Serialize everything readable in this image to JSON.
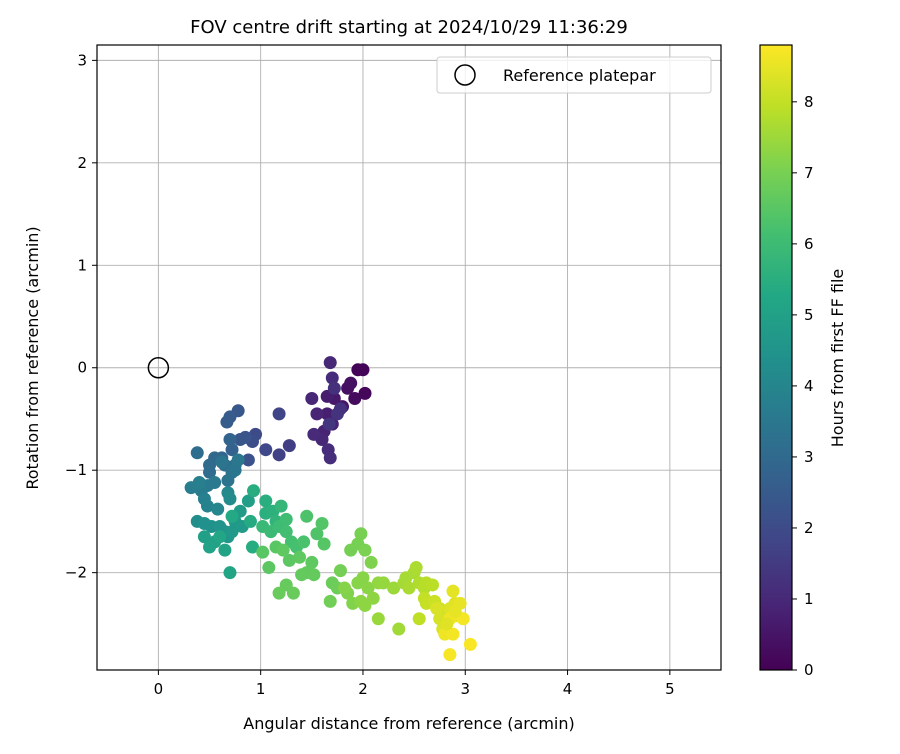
{
  "chart_data": {
    "type": "scatter",
    "title": "FOV centre drift starting at 2024/10/29 11:36:29",
    "xlabel": "Angular distance from reference (arcmin)",
    "ylabel": "Rotation from reference (arcmin)",
    "xlim": [
      -0.6,
      5.5
    ],
    "ylim": [
      -2.95,
      3.15
    ],
    "xticks": [
      "0",
      "1",
      "2",
      "3",
      "4",
      "5"
    ],
    "yticks": [
      "−2",
      "−1",
      "0",
      "1",
      "2",
      "3"
    ],
    "grid": true,
    "legend": {
      "placement": "top-right",
      "entries": [
        "Reference platepar"
      ]
    },
    "reference_point": {
      "x": 0,
      "y": 0
    },
    "colorbar": {
      "label": "Hours from first FF file",
      "range": [
        0,
        8.8
      ],
      "ticks": [
        "0",
        "1",
        "2",
        "3",
        "4",
        "5",
        "6",
        "7",
        "8"
      ],
      "colormap": "viridis",
      "colors": [
        "#440154",
        "#482475",
        "#414487",
        "#355f8d",
        "#2a788e",
        "#21918c",
        "#22a884",
        "#44bf70",
        "#7ad151",
        "#bddf26",
        "#fde725"
      ]
    },
    "series": [
      {
        "points": [
          [
            1.95,
            -0.02,
            0.05
          ],
          [
            2.0,
            -0.02,
            0.1
          ],
          [
            2.02,
            -0.25,
            0.15
          ],
          [
            1.92,
            -0.3,
            0.25
          ],
          [
            1.85,
            -0.2,
            0.35
          ],
          [
            1.88,
            -0.15,
            0.4
          ],
          [
            1.8,
            -0.38,
            0.5
          ],
          [
            1.72,
            -0.3,
            0.6
          ],
          [
            1.65,
            -0.28,
            0.7
          ],
          [
            1.65,
            -0.45,
            0.75
          ],
          [
            1.7,
            -0.55,
            0.8
          ],
          [
            1.62,
            -0.62,
            0.85
          ],
          [
            1.55,
            -0.45,
            0.9
          ],
          [
            1.5,
            -0.3,
            0.95
          ],
          [
            1.6,
            -0.7,
            1.0
          ],
          [
            1.52,
            -0.65,
            1.05
          ],
          [
            1.66,
            -0.8,
            1.1
          ],
          [
            1.68,
            -0.88,
            1.15
          ],
          [
            1.68,
            0.05,
            1.0
          ],
          [
            1.7,
            -0.1,
            1.1
          ],
          [
            1.72,
            -0.2,
            1.2
          ],
          [
            1.78,
            -0.4,
            1.25
          ],
          [
            1.75,
            -0.45,
            1.3
          ],
          [
            1.67,
            -0.55,
            1.35
          ],
          [
            1.28,
            -0.76,
            1.6
          ],
          [
            1.18,
            -0.85,
            1.7
          ],
          [
            1.18,
            -0.45,
            1.8
          ],
          [
            1.05,
            -0.8,
            1.9
          ],
          [
            0.95,
            -0.65,
            2.0
          ],
          [
            0.92,
            -0.72,
            2.1
          ],
          [
            0.88,
            -0.9,
            2.2
          ],
          [
            0.85,
            -0.68,
            2.3
          ],
          [
            0.8,
            -0.7,
            2.35
          ],
          [
            0.78,
            -0.42,
            2.4
          ],
          [
            0.7,
            -0.48,
            2.5
          ],
          [
            0.67,
            -0.53,
            2.55
          ],
          [
            0.72,
            -0.8,
            2.7
          ],
          [
            0.7,
            -0.7,
            2.8
          ],
          [
            0.62,
            -0.88,
            2.9
          ],
          [
            0.55,
            -0.88,
            3.0
          ],
          [
            0.5,
            -0.95,
            3.05
          ],
          [
            0.5,
            -1.02,
            3.1
          ],
          [
            0.38,
            -0.83,
            3.15
          ],
          [
            0.65,
            -0.95,
            3.2
          ],
          [
            0.75,
            -0.95,
            3.25
          ],
          [
            0.72,
            -1.02,
            3.3
          ],
          [
            0.68,
            -1.1,
            3.35
          ],
          [
            0.75,
            -1.0,
            3.4
          ],
          [
            0.62,
            -0.92,
            3.45
          ],
          [
            0.78,
            -0.9,
            3.5
          ],
          [
            0.55,
            -1.12,
            3.55
          ],
          [
            0.48,
            -1.15,
            3.6
          ],
          [
            0.42,
            -1.2,
            3.65
          ],
          [
            0.32,
            -1.17,
            3.7
          ],
          [
            0.4,
            -1.12,
            3.75
          ],
          [
            0.45,
            -1.28,
            3.8
          ],
          [
            0.48,
            -1.35,
            3.9
          ],
          [
            0.58,
            -1.38,
            4.0
          ],
          [
            0.68,
            -1.22,
            4.1
          ],
          [
            0.7,
            -1.28,
            4.2
          ],
          [
            0.38,
            -1.5,
            4.3
          ],
          [
            0.45,
            -1.52,
            4.35
          ],
          [
            0.52,
            -1.55,
            4.4
          ],
          [
            0.6,
            -1.55,
            4.5
          ],
          [
            0.65,
            -1.6,
            4.55
          ],
          [
            0.68,
            -1.65,
            4.6
          ],
          [
            0.72,
            -1.6,
            4.65
          ],
          [
            0.75,
            -1.5,
            4.7
          ],
          [
            0.82,
            -1.55,
            4.75
          ],
          [
            0.8,
            -1.4,
            4.8
          ],
          [
            0.88,
            -1.3,
            4.9
          ],
          [
            0.45,
            -1.65,
            4.95
          ],
          [
            0.55,
            -1.7,
            5.0
          ],
          [
            0.5,
            -1.75,
            5.05
          ],
          [
            0.65,
            -1.78,
            5.1
          ],
          [
            0.7,
            -2.0,
            5.15
          ],
          [
            0.6,
            -1.65,
            5.2
          ],
          [
            0.72,
            -1.45,
            5.3
          ],
          [
            0.9,
            -1.5,
            5.35
          ],
          [
            0.92,
            -1.75,
            5.4
          ],
          [
            0.93,
            -1.2,
            5.45
          ],
          [
            1.05,
            -1.3,
            5.5
          ],
          [
            1.05,
            -1.42,
            5.55
          ],
          [
            1.12,
            -1.4,
            5.6
          ],
          [
            1.15,
            -1.5,
            5.7
          ],
          [
            1.2,
            -1.35,
            5.8
          ],
          [
            1.02,
            -1.55,
            5.9
          ],
          [
            1.1,
            -1.6,
            5.95
          ],
          [
            1.18,
            -1.55,
            6.0
          ],
          [
            1.25,
            -1.48,
            6.05
          ],
          [
            1.25,
            -1.6,
            6.1
          ],
          [
            1.3,
            -1.7,
            6.15
          ],
          [
            1.35,
            -1.75,
            6.2
          ],
          [
            1.42,
            -1.7,
            6.25
          ],
          [
            1.45,
            -1.45,
            6.3
          ],
          [
            1.55,
            -1.62,
            6.35
          ],
          [
            1.6,
            -1.52,
            6.4
          ],
          [
            1.62,
            -1.72,
            6.45
          ],
          [
            1.15,
            -1.75,
            6.5
          ],
          [
            1.28,
            -1.88,
            6.55
          ],
          [
            1.38,
            -1.85,
            6.6
          ],
          [
            1.5,
            -1.9,
            6.62
          ],
          [
            1.45,
            -2.0,
            6.65
          ],
          [
            1.52,
            -2.02,
            6.68
          ],
          [
            1.4,
            -2.02,
            6.7
          ],
          [
            1.25,
            -2.12,
            6.72
          ],
          [
            1.32,
            -2.2,
            6.75
          ],
          [
            1.18,
            -2.2,
            6.77
          ],
          [
            1.02,
            -1.8,
            6.5
          ],
          [
            1.08,
            -1.95,
            6.55
          ],
          [
            1.22,
            -1.78,
            6.6
          ],
          [
            1.7,
            -2.1,
            6.8
          ],
          [
            1.75,
            -2.15,
            6.85
          ],
          [
            1.68,
            -2.28,
            6.9
          ],
          [
            1.78,
            -1.98,
            6.92
          ],
          [
            1.88,
            -1.78,
            6.95
          ],
          [
            1.95,
            -1.72,
            6.98
          ],
          [
            1.98,
            -1.62,
            7.0
          ],
          [
            2.02,
            -1.78,
            7.05
          ],
          [
            2.08,
            -1.9,
            7.1
          ],
          [
            1.85,
            -2.2,
            7.12
          ],
          [
            1.9,
            -2.3,
            7.15
          ],
          [
            1.82,
            -2.15,
            7.18
          ],
          [
            1.95,
            -2.1,
            7.2
          ],
          [
            2.0,
            -2.05,
            7.22
          ],
          [
            2.05,
            -2.15,
            7.25
          ],
          [
            1.98,
            -2.28,
            7.28
          ],
          [
            2.02,
            -2.32,
            7.3
          ],
          [
            2.1,
            -2.25,
            7.32
          ],
          [
            2.15,
            -2.1,
            7.35
          ],
          [
            2.2,
            -2.1,
            7.4
          ],
          [
            2.15,
            -2.45,
            7.45
          ],
          [
            2.3,
            -2.15,
            7.5
          ],
          [
            2.35,
            -2.55,
            7.55
          ],
          [
            2.4,
            -2.1,
            7.6
          ],
          [
            2.42,
            -2.05,
            7.62
          ],
          [
            2.5,
            -2.0,
            7.65
          ],
          [
            2.45,
            -2.15,
            7.68
          ],
          [
            2.52,
            -1.95,
            7.7
          ],
          [
            2.55,
            -2.1,
            7.75
          ],
          [
            2.6,
            -2.15,
            7.8
          ],
          [
            2.62,
            -2.1,
            7.85
          ],
          [
            2.68,
            -2.12,
            7.9
          ],
          [
            2.55,
            -2.45,
            7.95
          ],
          [
            2.6,
            -2.25,
            8.0
          ],
          [
            2.62,
            -2.3,
            8.05
          ],
          [
            2.7,
            -2.28,
            8.1
          ],
          [
            2.75,
            -2.35,
            8.15
          ],
          [
            2.8,
            -2.4,
            8.2
          ],
          [
            2.75,
            -2.45,
            8.25
          ],
          [
            2.78,
            -2.55,
            8.3
          ],
          [
            2.85,
            -2.35,
            8.35
          ],
          [
            2.9,
            -2.3,
            8.4
          ],
          [
            2.88,
            -2.18,
            8.45
          ],
          [
            2.95,
            -2.3,
            8.5
          ],
          [
            2.92,
            -2.42,
            8.55
          ],
          [
            2.8,
            -2.6,
            8.6
          ],
          [
            2.85,
            -2.45,
            8.62
          ],
          [
            2.88,
            -2.6,
            8.65
          ],
          [
            2.98,
            -2.45,
            8.68
          ],
          [
            2.85,
            -2.8,
            8.7
          ],
          [
            3.05,
            -2.7,
            8.75
          ],
          [
            2.72,
            -2.35,
            8.3
          ],
          [
            2.82,
            -2.5,
            8.4
          ],
          [
            2.9,
            -2.38,
            8.5
          ]
        ]
      }
    ]
  }
}
